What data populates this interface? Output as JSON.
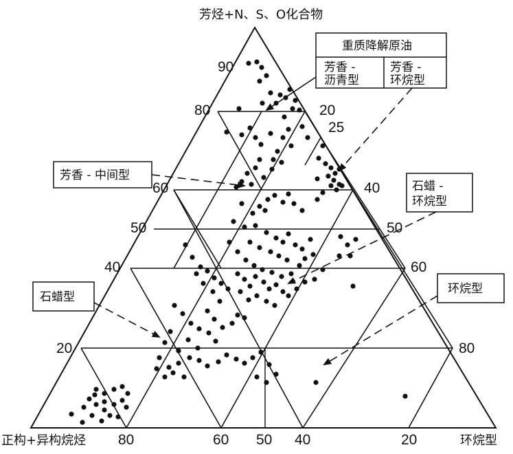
{
  "diagram": {
    "apex_label": "芳烃+N、S、O化合物",
    "left_corner_label": "正构+异构烷烃",
    "right_corner_label": "环烷型",
    "left_edge_ticks": [
      "90",
      "80",
      "60",
      "50",
      "40",
      "20"
    ],
    "right_edge_ticks": [
      "20",
      "25",
      "40",
      "50",
      "60",
      "80"
    ],
    "bottom_ticks": [
      "80",
      "60",
      "50",
      "40",
      "20"
    ],
    "heavy_box": {
      "title": "重质降解原油",
      "left_cell": [
        "芳香 -",
        "沥青型"
      ],
      "right_cell": [
        "芳香 -",
        "环烷型"
      ]
    },
    "callouts": {
      "aromatic_intermediate": "芳香 - 中间型",
      "paraffin_naphthene": [
        "石蜡 -",
        "环烷型"
      ],
      "paraffin": "石蜡型",
      "naphthene": "环烷型"
    },
    "colors": {
      "line": "#111111",
      "dot": "#111111",
      "background": "#ffffff"
    }
  }
}
